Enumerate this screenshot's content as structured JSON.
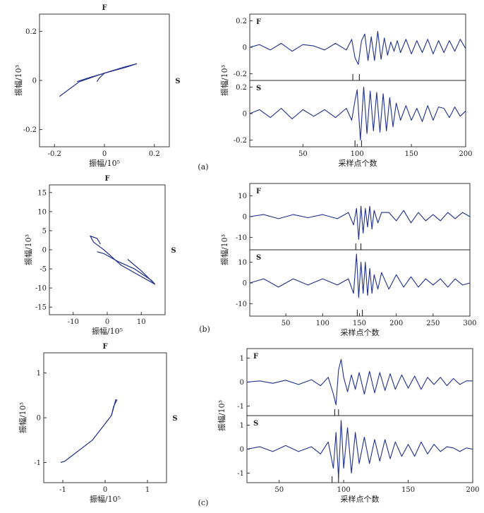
{
  "chart_data": [
    {
      "panel": "(a)",
      "type": "line",
      "subtitle": "F",
      "side_label": "S",
      "xlabel": "振幅/10⁵",
      "ylabel": "振幅/10³",
      "xlim": [
        -0.26,
        0.26
      ],
      "ylim": [
        -0.27,
        0.27
      ],
      "xticks": [
        -0.2,
        0,
        0.2
      ],
      "xtick_labels": [
        "-0.2",
        "0",
        "0.2"
      ],
      "yticks": [
        -0.2,
        0,
        0.2
      ],
      "ytick_labels": [
        "-0.2",
        "0",
        "0.2"
      ],
      "series": [
        {
          "x": [
            -0.18,
            -0.1,
            0.0,
            0.08,
            0.13
          ],
          "y": [
            -0.065,
            -0.005,
            0.03,
            0.055,
            0.068
          ]
        },
        {
          "x": [
            -0.11,
            -0.05,
            0.02,
            0.09,
            0.13
          ],
          "y": [
            -0.005,
            0.015,
            0.035,
            0.055,
            0.068
          ]
        },
        {
          "x": [
            -0.03,
            -0.02,
            0.0
          ],
          "y": [
            -0.005,
            0.01,
            0.03
          ]
        }
      ]
    },
    {
      "panel": "(a)",
      "type": "line",
      "xlabel": "采样点个数",
      "ylabel": "振幅/10³",
      "xlim": [
        1,
        200
      ],
      "xticks": [
        50,
        100,
        150,
        200
      ],
      "xtick_labels": [
        "50",
        "100",
        "150",
        "200"
      ],
      "traces": [
        {
          "label": "F",
          "ylim": [
            -0.25,
            0.25
          ],
          "yticks": [
            -0.2,
            0,
            0.2
          ],
          "ytick_labels": [
            "-0.2",
            "0",
            "0.2"
          ],
          "markers_x": [
            96,
            102
          ],
          "x": [
            1,
            10,
            20,
            30,
            40,
            50,
            60,
            70,
            80,
            90,
            95,
            98,
            101,
            104,
            107,
            110,
            113,
            116,
            119,
            122,
            125,
            128,
            131,
            134,
            137,
            140,
            145,
            150,
            155,
            160,
            165,
            170,
            175,
            180,
            185,
            190,
            195,
            200
          ],
          "y": [
            0.0,
            0.02,
            -0.02,
            0.03,
            -0.03,
            0.02,
            0.01,
            -0.02,
            0.03,
            -0.02,
            0.06,
            -0.08,
            -0.13,
            0.05,
            0.1,
            -0.1,
            0.08,
            -0.1,
            0.12,
            -0.09,
            0.07,
            -0.06,
            0.04,
            -0.03,
            0.05,
            -0.04,
            0.06,
            -0.05,
            0.05,
            -0.04,
            0.06,
            -0.05,
            0.05,
            -0.04,
            0.05,
            -0.03,
            0.06,
            -0.01
          ]
        },
        {
          "label": "S",
          "ylim": [
            -0.25,
            0.25
          ],
          "yticks": [
            -0.2,
            0,
            0.2
          ],
          "ytick_labels": [
            "-0.2",
            "0",
            "0.2"
          ],
          "markers_x": [
            98,
            104
          ],
          "x": [
            1,
            10,
            20,
            30,
            40,
            50,
            60,
            70,
            80,
            90,
            95,
            98,
            100,
            103,
            106,
            109,
            112,
            115,
            118,
            121,
            124,
            127,
            130,
            133,
            136,
            140,
            145,
            150,
            155,
            160,
            165,
            170,
            175,
            180,
            185,
            190,
            195,
            200
          ],
          "y": [
            0.0,
            0.03,
            -0.03,
            0.04,
            -0.04,
            0.03,
            -0.02,
            0.03,
            -0.03,
            0.04,
            -0.05,
            0.1,
            0.18,
            -0.2,
            0.2,
            -0.15,
            0.17,
            -0.13,
            0.16,
            -0.14,
            0.15,
            -0.13,
            0.12,
            -0.1,
            0.08,
            -0.05,
            0.06,
            -0.05,
            0.04,
            -0.06,
            0.06,
            -0.05,
            0.05,
            0.04,
            -0.03,
            0.05,
            -0.02,
            0.02
          ]
        }
      ]
    },
    {
      "panel": "(b)",
      "type": "line",
      "subtitle": "F",
      "side_label": "S",
      "xlabel": "振幅/10⁵",
      "ylabel": "振幅/10³",
      "xlim": [
        -17,
        17
      ],
      "ylim": [
        -17,
        17
      ],
      "xticks": [
        -10,
        0,
        10
      ],
      "xtick_labels": [
        "-10",
        "0",
        "10"
      ],
      "yticks": [
        -15,
        -10,
        -5,
        0,
        5,
        10,
        15
      ],
      "ytick_labels": [
        "-15",
        "-10",
        "-5",
        "0",
        "5",
        "10",
        "15"
      ],
      "series": [
        {
          "x": [
            -2,
            -3,
            -5,
            -4,
            -1,
            4,
            10,
            14
          ],
          "y": [
            1.5,
            3,
            3.6,
            2,
            0,
            -4,
            -7,
            -9
          ]
        },
        {
          "x": [
            6,
            10,
            14,
            13,
            8,
            3,
            -1,
            -3
          ],
          "y": [
            -2.5,
            -5.5,
            -9,
            -8,
            -5,
            -3,
            -1,
            -0.5
          ]
        }
      ]
    },
    {
      "panel": "(b)",
      "type": "line",
      "xlabel": "采样点个数",
      "ylabel": "振幅/10³",
      "xlim": [
        1,
        300
      ],
      "xticks": [
        50,
        100,
        150,
        200,
        250,
        300
      ],
      "xtick_labels": [
        "50",
        "100",
        "150",
        "200",
        "250",
        "300"
      ],
      "traces": [
        {
          "label": "F",
          "ylim": [
            -16,
            16
          ],
          "yticks": [
            -10,
            0,
            10
          ],
          "ytick_labels": [
            "-10",
            "0",
            "10"
          ],
          "markers_x": [
            145,
            152
          ],
          "x": [
            1,
            20,
            40,
            60,
            80,
            100,
            120,
            135,
            142,
            146,
            149,
            152,
            155,
            158,
            161,
            164,
            167,
            170,
            175,
            180,
            190,
            200,
            210,
            220,
            230,
            240,
            250,
            260,
            270,
            280,
            290,
            300
          ],
          "y": [
            0,
            1,
            -1,
            1,
            -0.5,
            1,
            -1,
            2,
            -4,
            4,
            -11,
            5,
            -8,
            4,
            -5,
            5,
            -6,
            3,
            -3,
            2,
            2,
            -2,
            3,
            -3,
            2,
            -2,
            1,
            -2,
            2,
            -1,
            2,
            0
          ]
        },
        {
          "label": "S",
          "ylim": [
            -16,
            16
          ],
          "yticks": [
            -10,
            0,
            10
          ],
          "ytick_labels": [
            "-10",
            "0",
            "10"
          ],
          "markers_x": [
            147,
            154
          ],
          "x": [
            1,
            20,
            40,
            60,
            80,
            100,
            120,
            135,
            142,
            146,
            149,
            152,
            155,
            158,
            161,
            164,
            167,
            170,
            175,
            180,
            190,
            200,
            210,
            220,
            230,
            240,
            250,
            260,
            270,
            280,
            290,
            300
          ],
          "y": [
            0,
            2,
            -2,
            2,
            -1,
            2,
            -1,
            2,
            -5,
            14,
            -7,
            10,
            -5,
            10,
            -6,
            7,
            -5,
            4,
            -3,
            5,
            -3,
            4,
            -2,
            3,
            -2,
            2,
            -1,
            2,
            -2,
            2,
            -1,
            0
          ]
        }
      ]
    },
    {
      "panel": "(c)",
      "type": "line",
      "subtitle": "F",
      "side_label": "S",
      "xlabel": "振幅/10⁵",
      "ylabel": "振幅/10³",
      "xlim": [
        -1.45,
        1.45
      ],
      "ylim": [
        -1.45,
        1.45
      ],
      "xticks": [
        -1,
        0,
        1
      ],
      "xtick_labels": [
        "-1",
        "0",
        "1"
      ],
      "yticks": [
        -1,
        0,
        1
      ],
      "ytick_labels": [
        "-1",
        "0",
        "1"
      ],
      "series": [
        {
          "x": [
            -1.05,
            -0.95,
            -0.3,
            0.15,
            0.25,
            0.28
          ],
          "y": [
            -1.0,
            -0.97,
            -0.5,
            0.05,
            0.4,
            0.4
          ]
        },
        {
          "x": [
            0.28,
            0.2,
            0.15
          ],
          "y": [
            0.4,
            0.25,
            0.05
          ]
        }
      ]
    },
    {
      "panel": "(c)",
      "type": "line",
      "xlabel": "采样点个数",
      "ylabel": "振幅/10³",
      "xlim": [
        25,
        200
      ],
      "xticks": [
        50,
        100,
        150,
        200
      ],
      "xtick_labels": [
        "50",
        "100",
        "150",
        "200"
      ],
      "traces": [
        {
          "label": "F",
          "ylim": [
            -1.4,
            1.4
          ],
          "yticks": [
            -1,
            0,
            1
          ],
          "ytick_labels": [
            "-1",
            "0",
            "1"
          ],
          "markers_x": [
            93,
            96
          ],
          "x": [
            25,
            35,
            45,
            55,
            65,
            75,
            82,
            88,
            92,
            94,
            96,
            98,
            100,
            103,
            106,
            109,
            112,
            116,
            120,
            124,
            128,
            132,
            136,
            140,
            145,
            150,
            155,
            160,
            165,
            170,
            175,
            180,
            185,
            190,
            195,
            200
          ],
          "y": [
            0,
            0.05,
            -0.05,
            0.08,
            -0.1,
            0.1,
            -0.15,
            0.2,
            -0.5,
            -0.95,
            0.5,
            0.95,
            0.2,
            -0.4,
            0.3,
            -0.3,
            0.4,
            -0.5,
            0.45,
            -0.45,
            0.4,
            -0.35,
            0.35,
            -0.3,
            0.3,
            -0.25,
            0.25,
            -0.3,
            0.2,
            -0.1,
            0.2,
            -0.15,
            0.15,
            -0.1,
            0.05,
            0.05
          ]
        },
        {
          "label": "S",
          "ylim": [
            -1.4,
            1.4
          ],
          "yticks": [
            -1,
            0,
            1
          ],
          "ytick_labels": [
            "-1",
            "0",
            "1"
          ],
          "markers_x": [
            91,
            96
          ],
          "x": [
            25,
            35,
            45,
            55,
            65,
            75,
            82,
            88,
            92,
            94,
            96,
            98,
            100,
            103,
            106,
            109,
            112,
            116,
            120,
            124,
            128,
            132,
            136,
            140,
            145,
            150,
            155,
            160,
            165,
            170,
            175,
            180,
            185,
            190,
            195,
            200
          ],
          "y": [
            0,
            0.1,
            -0.1,
            0.15,
            -0.1,
            0.1,
            -0.2,
            0.3,
            -0.8,
            0.7,
            -1.2,
            1.2,
            -0.8,
            0.9,
            -1.0,
            0.7,
            -0.6,
            0.5,
            -0.6,
            0.4,
            -0.5,
            0.4,
            -0.4,
            0.3,
            -0.3,
            0.2,
            -0.3,
            0.3,
            -0.2,
            0.2,
            -0.1,
            0.1,
            0.05,
            -0.1,
            0.05,
            0
          ]
        }
      ]
    }
  ]
}
